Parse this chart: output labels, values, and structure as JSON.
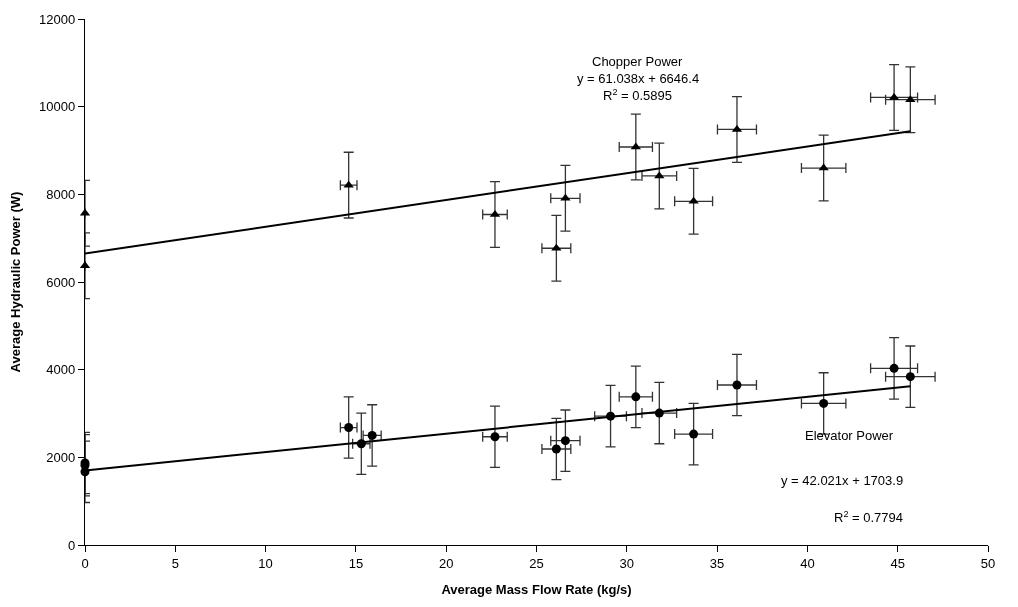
{
  "chart_data": {
    "type": "scatter",
    "xlabel": "Average Mass Flow Rate (kg/s)",
    "ylabel": "Average Hydraulic Power (W)",
    "xlim": [
      0,
      50
    ],
    "xticks": [
      0,
      5,
      10,
      15,
      20,
      25,
      30,
      35,
      40,
      45,
      50
    ],
    "ylim": [
      0,
      12000
    ],
    "yticks": [
      0,
      2000,
      4000,
      6000,
      8000,
      10000,
      12000
    ],
    "grid": false,
    "legend": false,
    "series": [
      {
        "color": "#000000",
        "marker": "triangle",
        "x": [
          0,
          0,
          14.6,
          22.7,
          26.1,
          26.6,
          30.5,
          31.8,
          33.7,
          36.1,
          40.9,
          44.8,
          45.7
        ],
        "values": [
          7570,
          6370,
          8210,
          7540,
          6770,
          7910,
          9080,
          8420,
          7840,
          9480,
          8600,
          10210,
          10160
        ],
        "errors": [
          750,
          750,
          750,
          750,
          750,
          750,
          750,
          750,
          750,
          750,
          750,
          750,
          750
        ],
        "xerrors": [
          0,
          0,
          0.46,
          0.68,
          0.8,
          0.81,
          0.92,
          0.96,
          1.05,
          1.08,
          1.23,
          1.3,
          1.37
        ]
      },
      {
        "color": "#000000",
        "marker": "circle",
        "x": [
          0,
          0,
          0,
          14.6,
          15.3,
          15.9,
          22.7,
          26.1,
          26.6,
          29.1,
          30.5,
          31.8,
          33.7,
          36.1,
          40.9,
          44.8,
          45.7
        ],
        "values": [
          1870,
          1820,
          1670,
          2680,
          2310,
          2500,
          2470,
          2190,
          2380,
          2940,
          3380,
          3010,
          2530,
          3650,
          3230,
          4030,
          3840
        ],
        "errors": [
          700,
          700,
          700,
          700,
          700,
          700,
          700,
          700,
          700,
          700,
          700,
          700,
          700,
          700,
          700,
          700,
          700
        ],
        "xerrors": [
          0,
          0,
          0,
          0.46,
          0.48,
          0.5,
          0.68,
          0.8,
          0.81,
          0.88,
          0.92,
          0.96,
          1.05,
          1.08,
          1.23,
          1.3,
          1.37
        ]
      },
      {
        "type": "line",
        "color": "#000000",
        "marker": "none",
        "x": [
          0,
          45.7
        ],
        "values": [
          6650,
          9440
        ]
      },
      {
        "type": "line",
        "color": "#000000",
        "marker": "none",
        "x": [
          0,
          45.7
        ],
        "values": [
          1700,
          3620
        ]
      }
    ],
    "annotations": [
      "Chopper Power",
      "y = 61.038x + 6646.4",
      "R$^{2}$ = 0.5895",
      "Elevator Power",
      "y = 42.021x + 1703.9",
      "R$^{2}$ = 0.7794"
    ]
  }
}
